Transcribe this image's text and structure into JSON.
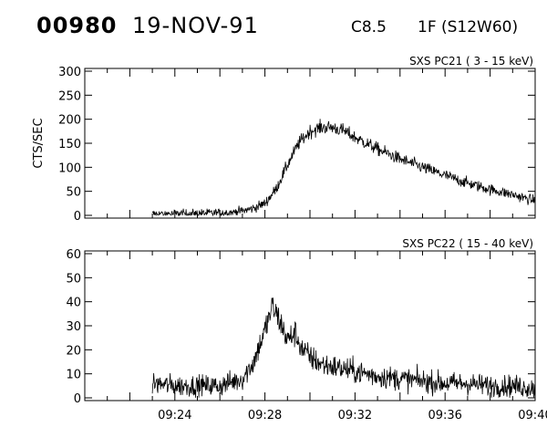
{
  "header": {
    "event_id": "00980",
    "date": "19-NOV-91",
    "goes_class": "C8.5",
    "optical": "1F (S12W60)"
  },
  "chart_data": [
    {
      "type": "line",
      "title": "SXS PC21  (  3 - 15 keV)",
      "ylabel": "CTS/SEC",
      "ylim": [
        0,
        300
      ],
      "yticks": [
        "0",
        "50",
        "100",
        "150",
        "200",
        "250",
        "300"
      ],
      "xlim": [
        "09:20",
        "09:40"
      ],
      "xticks": [
        "09:24",
        "09:28",
        "09:32",
        "09:36",
        "09:40"
      ],
      "xtick_labels_shown": false,
      "data_start": "09:23",
      "noise": 7,
      "series": [
        {
          "x": [
            "09:23",
            "09:24",
            "09:25",
            "09:26",
            "09:27",
            "09:27:30",
            "09:28",
            "09:28:30",
            "09:29",
            "09:29:30",
            "09:30",
            "09:30:30",
            "09:31",
            "09:31:30",
            "09:32",
            "09:33",
            "09:34",
            "09:35",
            "09:36",
            "09:37",
            "09:38",
            "09:39",
            "09:40"
          ],
          "values": [
            3,
            3,
            4,
            5,
            9,
            15,
            25,
            55,
            105,
            150,
            175,
            183,
            183,
            176,
            162,
            138,
            117,
            100,
            83,
            67,
            54,
            43,
            30
          ]
        }
      ]
    },
    {
      "type": "line",
      "title": "SXS PC22  ( 15 - 40 keV)",
      "ylim": [
        0,
        60
      ],
      "yticks": [
        "0",
        "10",
        "20",
        "30",
        "40",
        "50",
        "60"
      ],
      "xlim": [
        "09:20",
        "09:40"
      ],
      "xticks": [
        "09:24",
        "09:28",
        "09:32",
        "09:36",
        "09:40"
      ],
      "xtick_labels_shown": true,
      "data_start": "09:23",
      "noise": 3,
      "series": [
        {
          "x": [
            "09:23",
            "09:24",
            "09:25",
            "09:26",
            "09:27",
            "09:27:30",
            "09:28",
            "09:28:20",
            "09:28:40",
            "09:29",
            "09:29:20",
            "09:29:40",
            "09:30",
            "09:30:30",
            "09:31",
            "09:32",
            "09:33",
            "09:34",
            "09:35",
            "09:36",
            "09:37",
            "09:38",
            "09:39",
            "09:40"
          ],
          "values": [
            6,
            5,
            5,
            5,
            8,
            15,
            28,
            38,
            32,
            24,
            27,
            20,
            17,
            14,
            13,
            11,
            9,
            8,
            7,
            6,
            6,
            5,
            5,
            4
          ]
        }
      ]
    }
  ]
}
